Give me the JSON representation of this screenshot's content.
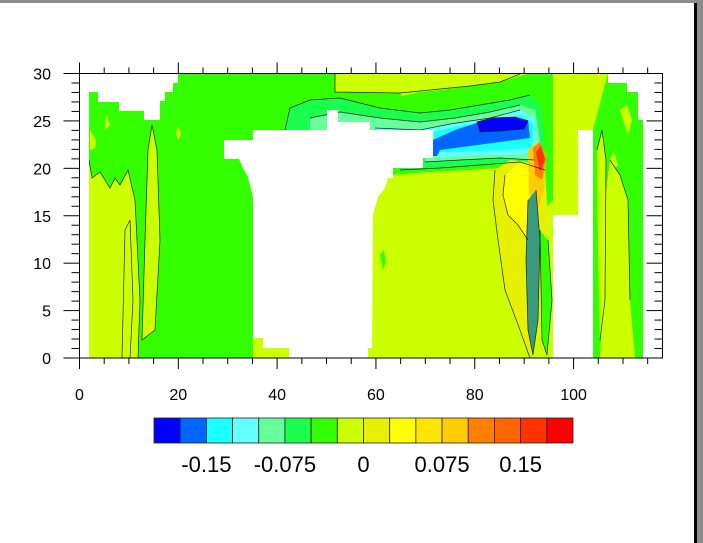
{
  "chart_data": {
    "type": "heatmap",
    "subtype": "filled-contour",
    "title": "",
    "xlabel": "",
    "ylabel": "",
    "xlim": [
      0,
      118
    ],
    "ylim": [
      0,
      30
    ],
    "x_ticks": [
      0,
      20,
      40,
      60,
      80,
      100
    ],
    "x_tick_labels": [
      "0",
      "20",
      "40",
      "60",
      "80",
      "100"
    ],
    "y_ticks": [
      0,
      5,
      10,
      15,
      20,
      25,
      30
    ],
    "y_tick_labels": [
      "0",
      "5",
      "10",
      "15",
      "20",
      "25",
      "30"
    ],
    "x_minor_step": 5,
    "y_minor_step": 1,
    "contour_levels": [
      -0.175,
      -0.15,
      -0.125,
      -0.1,
      -0.075,
      -0.05,
      -0.025,
      0,
      0.025,
      0.05,
      0.075,
      0.1,
      0.125,
      0.15,
      0.175
    ],
    "colorbar": {
      "placement": "bottom",
      "colors": [
        "#0000ff",
        "#0066ff",
        "#1affff",
        "#66ffff",
        "#66ff99",
        "#1aff4d",
        "#33ff00",
        "#ccff00",
        "#e6f000",
        "#ffff00",
        "#ffe600",
        "#ffcc00",
        "#ff8000",
        "#ff6600",
        "#ff3300",
        "#ff0000"
      ],
      "labels": [
        {
          "text": "-0.15",
          "level_index": 1
        },
        {
          "text": "-0.075",
          "level_index": 4
        },
        {
          "text": "0",
          "level_index": 7
        },
        {
          "text": "0.075",
          "level_index": 10
        },
        {
          "text": "0.15",
          "level_index": 13
        }
      ]
    },
    "features": {
      "minimum": {
        "x": 86,
        "y": 24.5,
        "value": "< -0.175"
      },
      "maximum": {
        "x": 92,
        "y": 21,
        "value": "> 0.175"
      }
    }
  }
}
